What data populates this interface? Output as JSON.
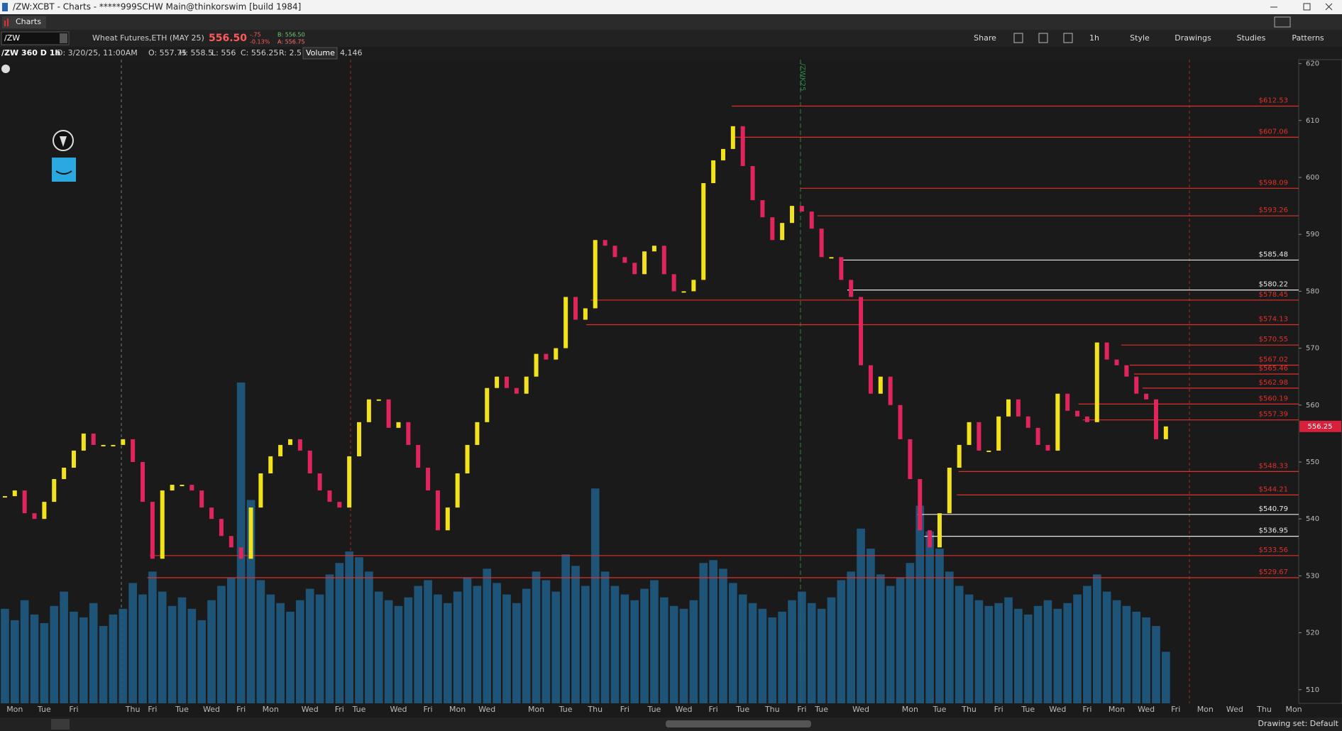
{
  "window": {
    "title": "/ZW:XCBT - Charts - *****999SCHW Main@thinkorswim [build 1984]",
    "tab": "Charts"
  },
  "toolbar": {
    "symbol": "/ZW",
    "description": "Wheat Futures,ETH (MAY 25)",
    "last": "556.50",
    "change": "-.75",
    "change_pct": "-0.13%",
    "bid": "B: 556.50",
    "ask": "A: 556.75",
    "buttons": [
      "Share",
      "1h",
      "Style",
      "Drawings",
      "Studies",
      "Patterns"
    ]
  },
  "info_bar": {
    "period": "/ZW 360 D 1h",
    "date": "D: 3/20/25, 11:00AM",
    "open": "O: 557.75",
    "high": "H: 558.5",
    "low": "L: 556",
    "close": "C: 556.25",
    "range": "R: 2.5",
    "volume_label": "Volume",
    "volume": "4,146"
  },
  "status_bar": {
    "drawing_set": "Drawing set: Default"
  },
  "chart_data": {
    "type": "candlestick",
    "categories": [
      null,
      "Mon",
      null,
      null,
      "Tue",
      null,
      null,
      "Fri",
      null,
      null,
      null,
      null,
      null,
      "Thu",
      null,
      "Fri",
      null,
      null,
      "Tue",
      null,
      null,
      "Wed",
      null,
      null,
      "Fri",
      null,
      null,
      "Mon",
      null,
      null,
      null,
      "Wed",
      null,
      null,
      "Fri",
      null,
      "Tue",
      null,
      null,
      null,
      "Wed",
      null,
      null,
      "Fri",
      null,
      null,
      "Mon",
      null,
      null,
      "Wed",
      null,
      null,
      null,
      null,
      "Mon",
      null,
      null,
      "Tue",
      null,
      null,
      "Thu",
      null,
      null,
      "Fri",
      null,
      null,
      "Tue",
      null,
      null,
      "Wed",
      null,
      null,
      "Fri",
      null,
      null,
      "Tue",
      null,
      null,
      "Thu",
      null,
      null,
      "Fri",
      null,
      "Tue",
      null,
      null,
      null,
      "Wed",
      null,
      null,
      null,
      null,
      "Mon",
      null,
      null,
      "Tue",
      null,
      null,
      "Thu",
      null,
      null,
      "Fri",
      null,
      null,
      "Tue",
      null,
      null,
      "Wed",
      null,
      null,
      "Fri",
      null,
      null,
      "Mon",
      null,
      null,
      "Wed",
      null,
      null,
      "Fri",
      null,
      null,
      "Mon",
      null,
      null,
      "Wed",
      null,
      null,
      "Thu",
      null,
      null,
      "Mon"
    ],
    "values": [
      544,
      545,
      541,
      540,
      543,
      547,
      549,
      552,
      555,
      553,
      553,
      553,
      554,
      550,
      543,
      533,
      545,
      546,
      546,
      545,
      542,
      540,
      537,
      535,
      533,
      542,
      548,
      551,
      553,
      554,
      552,
      548,
      545,
      543,
      542,
      551,
      557,
      561,
      561,
      556,
      557,
      553,
      549,
      545,
      538,
      542,
      548,
      553,
      557,
      563,
      565,
      563,
      562,
      565,
      569,
      568,
      570,
      579,
      575,
      577,
      589,
      588,
      586,
      585,
      583,
      587,
      588,
      583,
      580,
      580,
      582,
      599,
      603,
      605,
      609,
      602,
      596,
      593,
      589,
      592,
      595,
      594,
      591,
      586,
      586,
      582,
      579,
      567,
      562,
      565,
      560,
      554,
      547,
      538,
      535,
      541,
      549,
      553,
      557,
      552,
      552,
      558,
      561,
      558,
      556,
      553,
      552,
      562,
      559,
      558,
      557,
      571,
      568,
      567,
      565,
      562,
      561,
      554,
      556.25,
      null,
      null,
      null,
      null,
      null,
      null,
      null,
      null,
      null,
      null,
      null,
      null,
      null
    ],
    "volume": [
      3300,
      2900,
      3600,
      3100,
      2800,
      3400,
      3900,
      3200,
      3000,
      3500,
      2700,
      3100,
      3300,
      4200,
      3800,
      4600,
      3900,
      3400,
      3700,
      3300,
      2900,
      3600,
      4100,
      4400,
      11200,
      7100,
      4300,
      3800,
      3500,
      3200,
      3600,
      4000,
      3800,
      4500,
      4900,
      5300,
      5100,
      4600,
      3900,
      3600,
      3400,
      3700,
      4100,
      4300,
      3800,
      3500,
      3900,
      4400,
      4100,
      4700,
      4200,
      3800,
      3500,
      4000,
      4600,
      4300,
      3900,
      5200,
      4800,
      4100,
      7500,
      4600,
      4100,
      3800,
      3600,
      4000,
      4300,
      3700,
      3400,
      3300,
      3600,
      4900,
      5000,
      4700,
      4200,
      3800,
      3500,
      3300,
      3000,
      3200,
      3600,
      3900,
      3500,
      3300,
      3700,
      4300,
      4600,
      6100,
      5400,
      4500,
      4100,
      4400,
      4900,
      6900,
      6000,
      5400,
      4600,
      4100,
      3800,
      3600,
      3400,
      3500,
      3700,
      3300,
      3100,
      3400,
      3600,
      3300,
      3500,
      3800,
      4100,
      4500,
      3900,
      3600,
      3400,
      3200,
      3000,
      2700,
      1800,
      null,
      null,
      null,
      null,
      null,
      null,
      null,
      null,
      null,
      null,
      null,
      null,
      null
    ],
    "up_color": "#f2e21c",
    "down_color": "#e0245c",
    "volume_color": "#1f5b82",
    "ylim": [
      507.6,
      620.7
    ],
    "yticks": [
      510,
      520,
      530,
      540,
      550,
      560,
      570,
      580,
      590,
      600,
      610,
      620
    ],
    "last_price": 556.25,
    "annotations": [
      "/ZWK25"
    ],
    "levels": [
      {
        "value": 612.53,
        "label": "$612.53",
        "color": "#e0302a"
      },
      {
        "value": 607.06,
        "label": "$607.06",
        "color": "#e0302a"
      },
      {
        "value": 598.09,
        "label": "$598.09",
        "color": "#e0302a"
      },
      {
        "value": 593.26,
        "label": "$593.26",
        "color": "#e0302a"
      },
      {
        "value": 585.48,
        "label": "$585.48",
        "color": "#e8e8e8"
      },
      {
        "value": 580.22,
        "label": "$580.22",
        "color": "#e8e8e8"
      },
      {
        "value": 578.45,
        "label": "$578.45",
        "color": "#e0302a"
      },
      {
        "value": 574.13,
        "label": "$574.13",
        "color": "#e0302a"
      },
      {
        "value": 570.55,
        "label": "$570.55",
        "color": "#e0302a"
      },
      {
        "value": 567.02,
        "label": "$567.02",
        "color": "#e0302a"
      },
      {
        "value": 565.46,
        "label": "$565.46",
        "color": "#e0302a"
      },
      {
        "value": 562.98,
        "label": "$562.98",
        "color": "#e0302a"
      },
      {
        "value": 560.19,
        "label": "$560.19",
        "color": "#e0302a"
      },
      {
        "value": 557.39,
        "label": "$557.39",
        "color": "#e0302a"
      },
      {
        "value": 548.33,
        "label": "$548.33",
        "color": "#e0302a"
      },
      {
        "value": 544.21,
        "label": "$544.21",
        "color": "#e0302a"
      },
      {
        "value": 540.79,
        "label": "$540.79",
        "color": "#e8e8e8"
      },
      {
        "value": 536.95,
        "label": "$536.95",
        "color": "#e8e8e8"
      },
      {
        "value": 533.56,
        "label": "$533.56",
        "color": "#e0302a"
      },
      {
        "value": 529.67,
        "label": "$529.67",
        "color": "#e0302a"
      }
    ]
  }
}
